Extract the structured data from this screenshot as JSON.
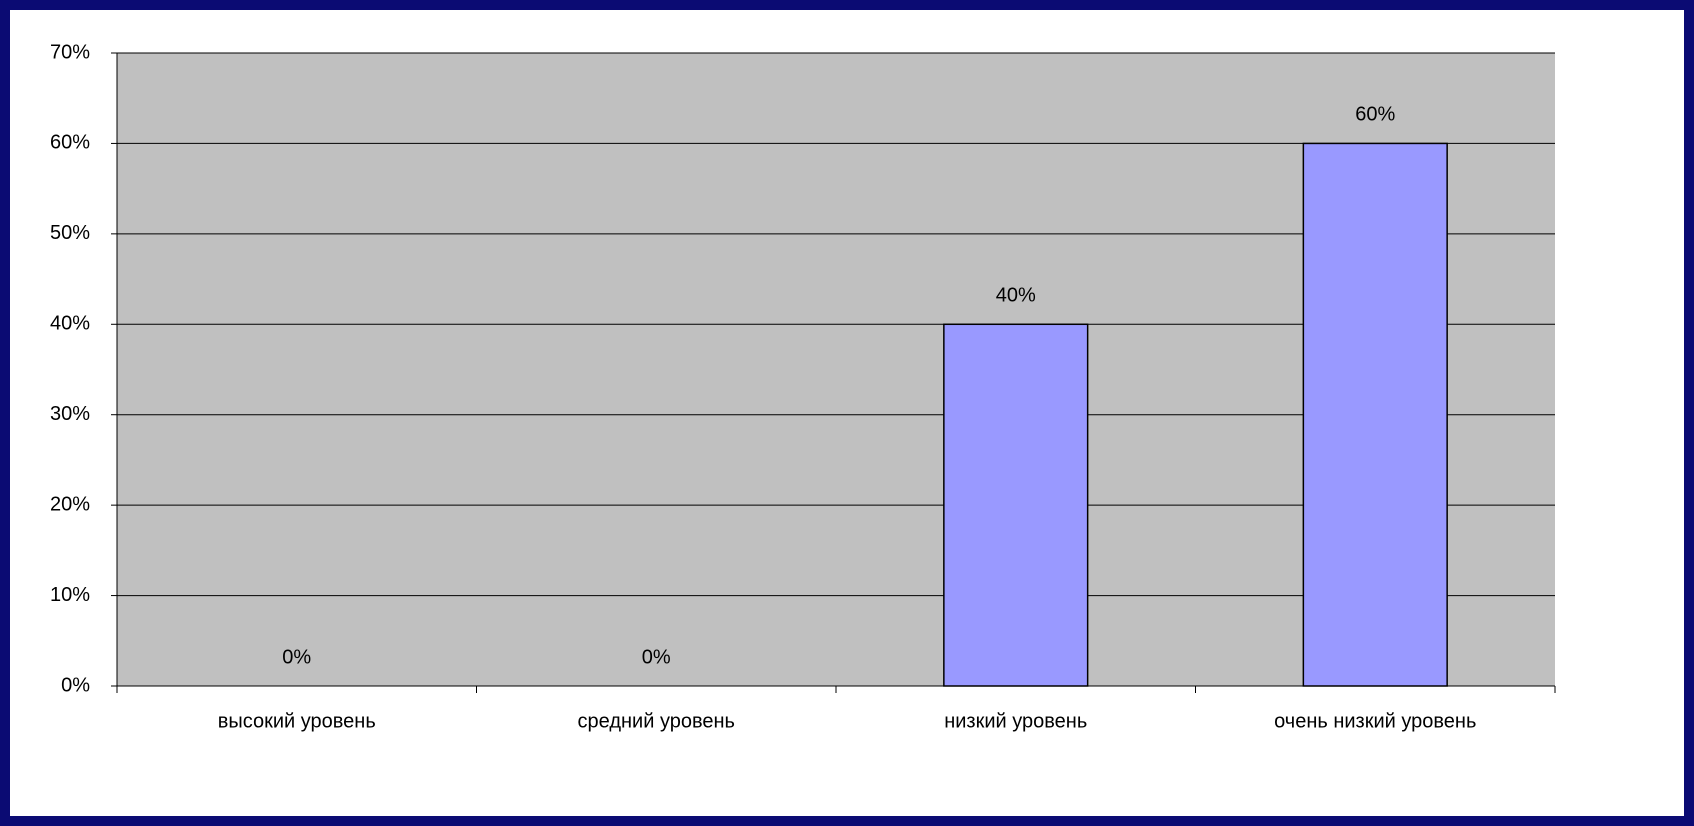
{
  "chart_data": {
    "type": "bar",
    "categories": [
      "высокий уровень",
      "средний уровень",
      "низкий уровень",
      "очень низкий уровень"
    ],
    "values": [
      0,
      0,
      40,
      60
    ],
    "value_labels": [
      "0%",
      "0%",
      "40%",
      "60%"
    ],
    "color": "#9999ff",
    "ylim": [
      0,
      70
    ],
    "yticks": [
      {
        "value": 0,
        "label": "0%"
      },
      {
        "value": 10,
        "label": "10%"
      },
      {
        "value": 20,
        "label": "20%"
      },
      {
        "value": 30,
        "label": "30%"
      },
      {
        "value": 40,
        "label": "40%"
      },
      {
        "value": 50,
        "label": "50%"
      },
      {
        "value": 60,
        "label": "60%"
      },
      {
        "value": 70,
        "label": "70%"
      }
    ],
    "grid": true
  }
}
